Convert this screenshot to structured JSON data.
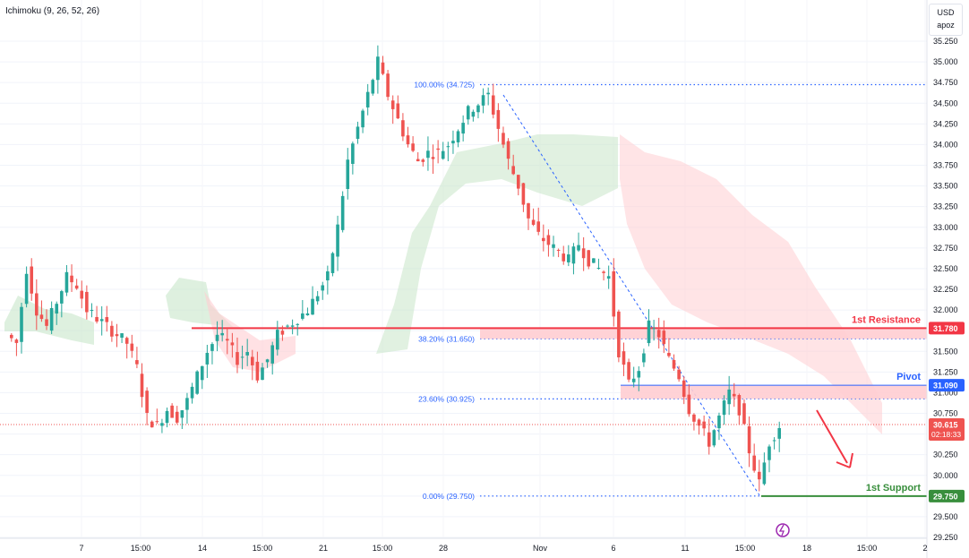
{
  "indicator_label": "Ichimoku (9, 26, 52, 26)",
  "currency": {
    "code": "USD",
    "sub": "apoz"
  },
  "colors": {
    "up": "#26a69a",
    "down": "#ef5350",
    "resistance": "#f23645",
    "pivot": "#2962ff",
    "support": "#388e3c",
    "cloud_bull": "#c8e6c9",
    "cloud_bear": "#ffcdd2",
    "fib": "#2962ff",
    "arrow": "#f23645"
  },
  "chart_data": {
    "type": "candlestick",
    "title": "",
    "ylim": [
      29.25,
      35.25
    ],
    "y_ticks": [
      "29.250",
      "29.500",
      "29.750",
      "30.000",
      "30.250",
      "30.500",
      "30.750",
      "31.000",
      "31.250",
      "31.500",
      "31.750",
      "32.000",
      "32.250",
      "32.500",
      "32.750",
      "33.000",
      "33.250",
      "33.500",
      "33.750",
      "34.000",
      "34.250",
      "34.500",
      "34.750",
      "35.000",
      "35.250"
    ],
    "x_ticks": [
      "7",
      "15:00",
      "14",
      "15:00",
      "21",
      "15:00",
      "28",
      "Nov",
      "6",
      "11",
      "15:00",
      "18",
      "15:00",
      "2"
    ],
    "close_path": [
      31.7,
      31.6,
      32.5,
      32.0,
      31.8,
      32.1,
      32.4,
      32.3,
      32.0,
      31.9,
      31.8,
      31.7,
      31.6,
      31.3,
      30.7,
      30.6,
      30.8,
      30.7,
      30.9,
      31.2,
      31.5,
      31.7,
      31.6,
      31.4,
      31.5,
      31.2,
      31.4,
      31.7,
      31.8,
      31.9,
      32.0,
      32.2,
      32.4,
      33.0,
      33.8,
      34.2,
      34.6,
      35.0,
      34.6,
      34.3,
      34.0,
      33.8,
      33.9,
      33.9,
      34.0,
      34.2,
      34.4,
      34.5,
      34.6,
      34.2,
      33.8,
      33.5,
      33.1,
      32.9,
      32.8,
      32.7,
      32.6,
      32.8,
      32.6,
      32.5,
      32.4,
      31.5,
      31.1,
      31.3,
      31.8,
      31.7,
      31.4,
      31.2,
      30.8,
      30.6,
      30.4,
      30.7,
      31.0,
      30.8,
      30.3,
      29.9,
      30.4,
      30.6
    ],
    "levels": [
      {
        "name": "1st Resistance",
        "value": 31.78,
        "tag": "31.780"
      },
      {
        "name": "Pivot",
        "value": 31.09,
        "tag": "31.090"
      },
      {
        "name": "1st Support",
        "value": 29.75,
        "tag": "29.750"
      }
    ],
    "current_price": {
      "value": 30.615,
      "tag": "30.615",
      "countdown": "02:18:33"
    },
    "fibonacci": [
      {
        "label": "100.00% (34.725)",
        "value": 34.725
      },
      {
        "label": "38.20% (31.650)",
        "value": 31.65
      },
      {
        "label": "23.60% (30.925)",
        "value": 30.925
      },
      {
        "label": "0.00% (29.750)",
        "value": 29.75
      }
    ]
  }
}
